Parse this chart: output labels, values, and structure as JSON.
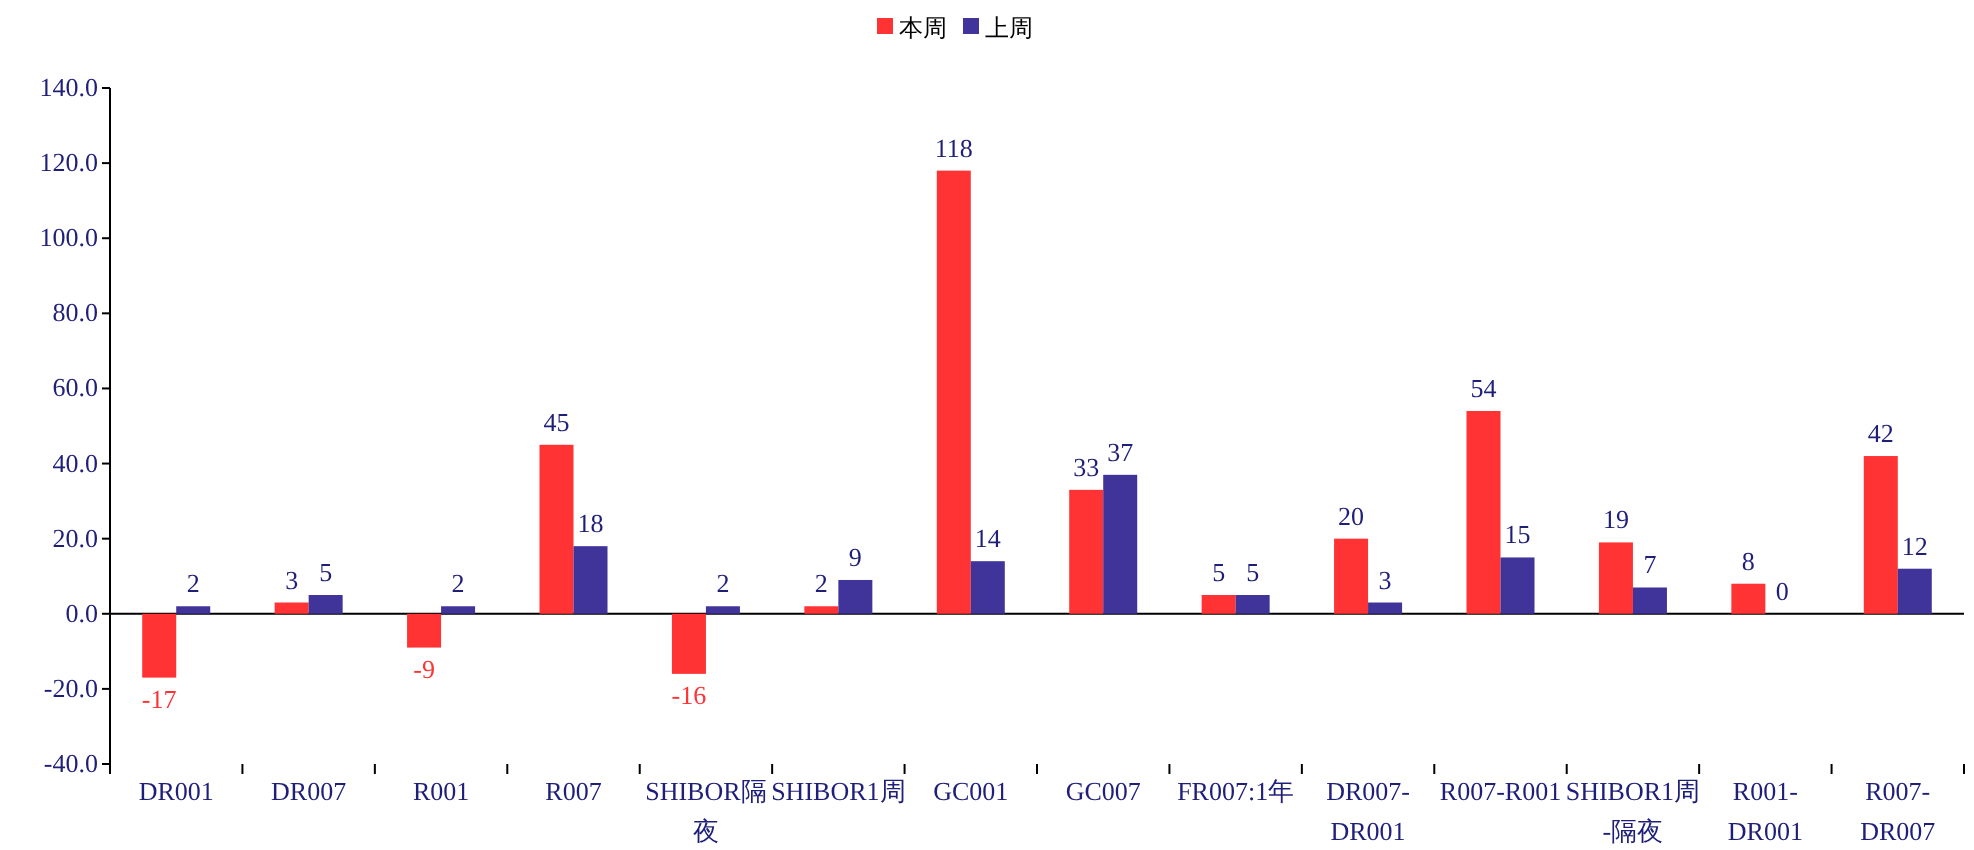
{
  "chart_data": {
    "type": "bar",
    "categories": [
      "DR001",
      "DR007",
      "R001",
      "R007",
      "SHIBOR隔夜",
      "SHIBOR1周",
      "GC001",
      "GC007",
      "FR007:1年",
      "DR007-DR001",
      "R007-R001",
      "SHIBOR1周-隔夜",
      "R001-DR001",
      "R007-DR007"
    ],
    "series": [
      {
        "name": "本周",
        "color": "#ff3333",
        "values": [
          -17,
          3,
          -9,
          45,
          -16,
          2,
          118,
          33,
          5,
          20,
          54,
          19,
          8,
          42
        ]
      },
      {
        "name": "上周",
        "color": "#403399",
        "values": [
          2,
          5,
          2,
          18,
          2,
          9,
          14,
          37,
          5,
          3,
          15,
          7,
          0,
          12
        ]
      }
    ],
    "ylim": [
      -40,
      140
    ],
    "yticks": [
      {
        "value": -40,
        "label": "-40.0"
      },
      {
        "value": -20,
        "label": "-20.0"
      },
      {
        "value": 0,
        "label": "0.0"
      },
      {
        "value": 20,
        "label": "20.0"
      },
      {
        "value": 40,
        "label": "40.0"
      },
      {
        "value": 60,
        "label": "60.0"
      },
      {
        "value": 80,
        "label": "80.0"
      },
      {
        "value": 100,
        "label": "100.0"
      },
      {
        "value": 120,
        "label": "120.0"
      },
      {
        "value": 140,
        "label": "140.0"
      }
    ],
    "data_labels": true,
    "legend": "top"
  }
}
